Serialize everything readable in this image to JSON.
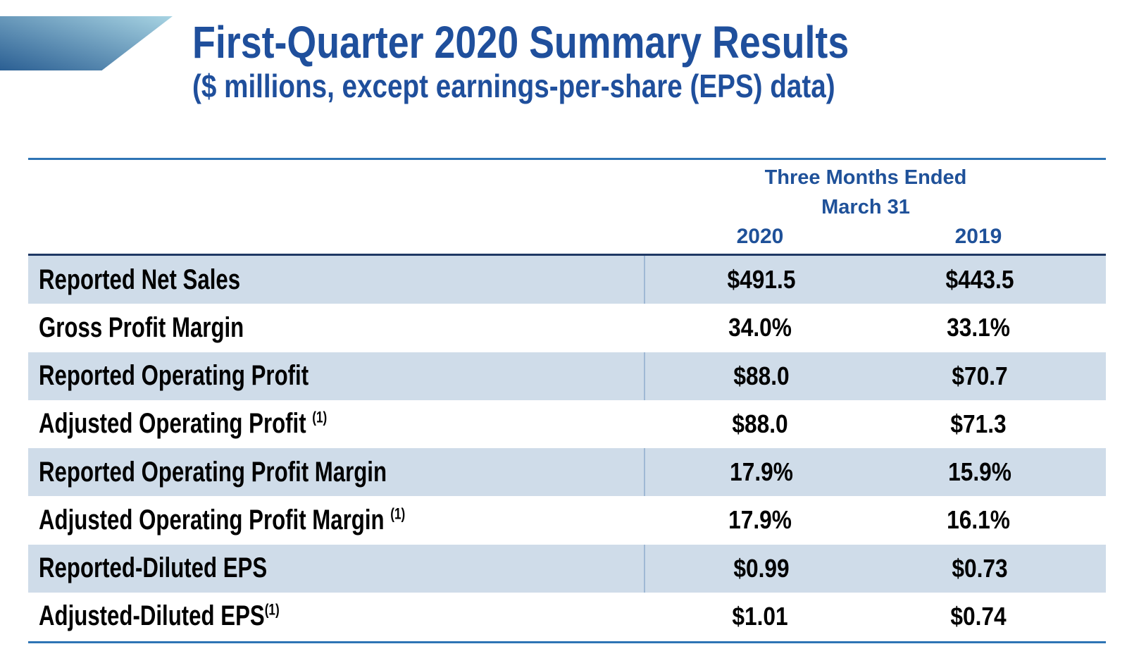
{
  "slide": {
    "title": "First-Quarter 2020 Summary Results",
    "subtitle": "($ millions, except earnings-per-share (EPS) data)"
  },
  "table": {
    "period": {
      "line1": "Three Months Ended",
      "line2": "March 31"
    },
    "columns": [
      "2020",
      "2019"
    ],
    "rows": [
      {
        "label": "Reported Net Sales",
        "footnote": "",
        "values": [
          "$491.5",
          "$443.5"
        ]
      },
      {
        "label": "Gross Profit Margin",
        "footnote": "",
        "values": [
          "34.0%",
          "33.1%"
        ]
      },
      {
        "label": "Reported Operating Profit",
        "footnote": "",
        "values": [
          "$88.0",
          "$70.7"
        ]
      },
      {
        "label": "Adjusted Operating Profit ",
        "footnote": "(1)",
        "values": [
          "$88.0",
          "$71.3"
        ]
      },
      {
        "label": "Reported Operating Profit Margin",
        "footnote": "",
        "values": [
          "17.9%",
          "15.9%"
        ]
      },
      {
        "label": "Adjusted Operating Profit Margin ",
        "footnote": "(1)",
        "values": [
          "17.9%",
          "16.1%"
        ]
      },
      {
        "label": "Reported-Diluted EPS",
        "footnote": "",
        "values": [
          "$0.99",
          "$0.73"
        ]
      },
      {
        "label": "Adjusted-Diluted EPS",
        "footnote": "(1)",
        "values": [
          "$1.01",
          "$0.74"
        ]
      }
    ]
  },
  "colors": {
    "title_blue": "#1F4F9C",
    "header_blue": "#1F5199",
    "rule_blue": "#2E74B5",
    "navy_line": "#1F3864",
    "row_shade": "#CFDCE9",
    "column_separator": "#9FB8D4",
    "body_text": "#000000",
    "deco_gradient_dark": "#2B5F93",
    "deco_gradient_light": "#A8D4E3"
  }
}
